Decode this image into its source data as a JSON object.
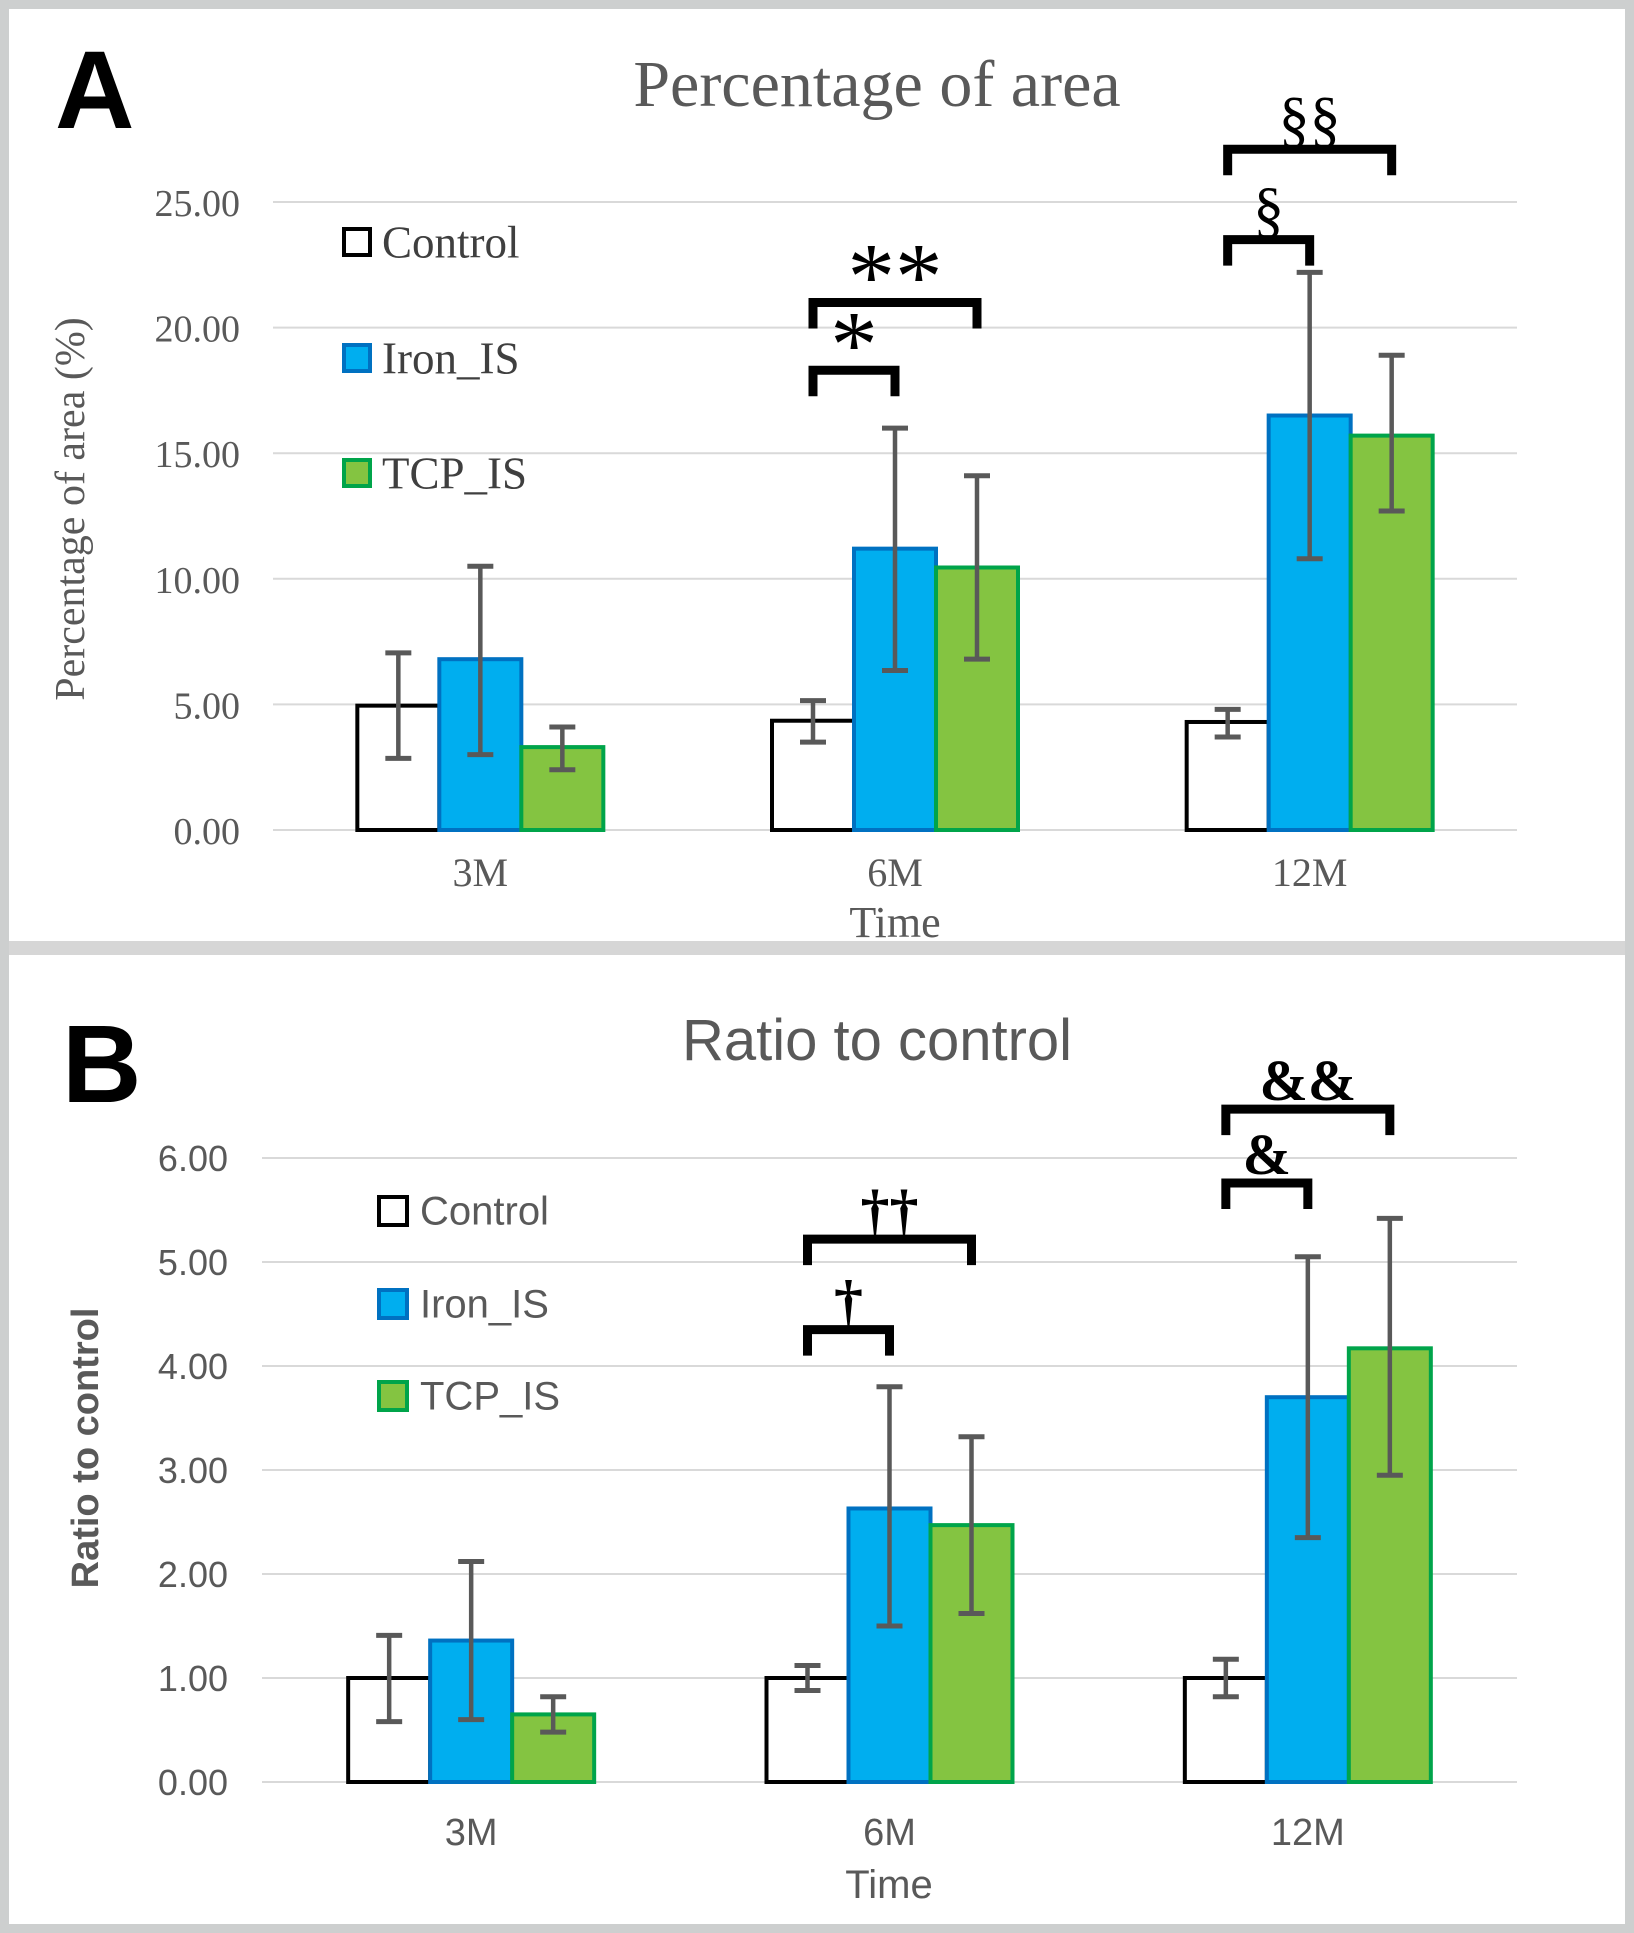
{
  "figure": {
    "panels": [
      {
        "letter": "A"
      },
      {
        "letter": "B"
      }
    ]
  },
  "colors": {
    "grid": "#D9D9D9",
    "axis_text": "#595959",
    "title_text": "#595959",
    "error_bar": "#595959",
    "bracket": "#000000",
    "divider": "#D6D6D6",
    "frame": "#CDCFCF"
  },
  "chart_data": [
    {
      "type": "bar",
      "title": "Percentage of area",
      "ylabel": "Percentage of area (%)",
      "xlabel": "Time",
      "categories": [
        "3M",
        "6M",
        "12M"
      ],
      "ylim": [
        0,
        25
      ],
      "ytick_step": 5,
      "ytick_labels": [
        "0.00",
        "5.00",
        "10.00",
        "15.00",
        "20.00",
        "25.00"
      ],
      "grid": true,
      "legend_position": "upper-left-inside",
      "legend_labels": [
        "Control",
        "Iron_IS",
        "TCP_IS"
      ],
      "series": [
        {
          "name": "Control",
          "fill": "#FFFFFF",
          "stroke": "#000000",
          "values": [
            4.95,
            4.35,
            4.3
          ],
          "err_low": [
            2.85,
            3.5,
            3.7
          ],
          "err_high": [
            7.05,
            5.15,
            4.8
          ]
        },
        {
          "name": "Iron_IS",
          "fill": "#00AEEF",
          "stroke": "#0071C1",
          "values": [
            6.8,
            11.2,
            16.5
          ],
          "err_low": [
            3.0,
            6.35,
            10.8
          ],
          "err_high": [
            10.5,
            16.0,
            22.2
          ]
        },
        {
          "name": "TCP_IS",
          "fill": "#84C441",
          "stroke": "#00A44A",
          "values": [
            3.3,
            10.45,
            15.7
          ],
          "err_low": [
            2.4,
            6.8,
            12.7
          ],
          "err_high": [
            4.1,
            14.1,
            18.9
          ]
        }
      ],
      "brackets": [
        {
          "category": 1,
          "from": 0,
          "to": 1,
          "label": "*",
          "y_value": 18.3
        },
        {
          "category": 1,
          "from": 0,
          "to": 2,
          "label": "**",
          "y_value": 21.0
        },
        {
          "category": 2,
          "from": 0,
          "to": 1,
          "label": "§",
          "y_value": 23.5
        },
        {
          "category": 2,
          "from": 0,
          "to": 2,
          "label": "§§",
          "y_value": 27.1
        }
      ]
    },
    {
      "type": "bar",
      "title": "Ratio to control",
      "ylabel": "Ratio to control",
      "xlabel": "Time",
      "categories": [
        "3M",
        "6M",
        "12M"
      ],
      "ylim": [
        0,
        6
      ],
      "ytick_step": 1,
      "ytick_labels": [
        "0.00",
        "1.00",
        "2.00",
        "3.00",
        "4.00",
        "5.00",
        "6.00"
      ],
      "grid": true,
      "legend_position": "upper-left-inside",
      "legend_labels": [
        "Control",
        "Iron_IS",
        "TCP_IS"
      ],
      "series": [
        {
          "name": "Control",
          "fill": "#FFFFFF",
          "stroke": "#000000",
          "values": [
            1.0,
            1.0,
            1.0
          ],
          "err_low": [
            0.58,
            0.88,
            0.82
          ],
          "err_high": [
            1.41,
            1.12,
            1.18
          ]
        },
        {
          "name": "Iron_IS",
          "fill": "#00AEEF",
          "stroke": "#0071C1",
          "values": [
            1.36,
            2.63,
            3.7
          ],
          "err_low": [
            0.6,
            1.5,
            2.35
          ],
          "err_high": [
            2.12,
            3.8,
            5.05
          ]
        },
        {
          "name": "TCP_IS",
          "fill": "#84C441",
          "stroke": "#00A44A",
          "values": [
            0.65,
            2.47,
            4.17
          ],
          "err_low": [
            0.48,
            1.62,
            2.95
          ],
          "err_high": [
            0.82,
            3.32,
            5.42
          ]
        }
      ],
      "brackets": [
        {
          "category": 1,
          "from": 0,
          "to": 1,
          "label": "†",
          "y_value": 4.35
        },
        {
          "category": 1,
          "from": 0,
          "to": 2,
          "label": "††",
          "y_value": 5.22
        },
        {
          "category": 2,
          "from": 0,
          "to": 1,
          "label": "&",
          "y_value": 5.76
        },
        {
          "category": 2,
          "from": 0,
          "to": 2,
          "label": "&&",
          "y_value": 6.47
        }
      ]
    }
  ]
}
